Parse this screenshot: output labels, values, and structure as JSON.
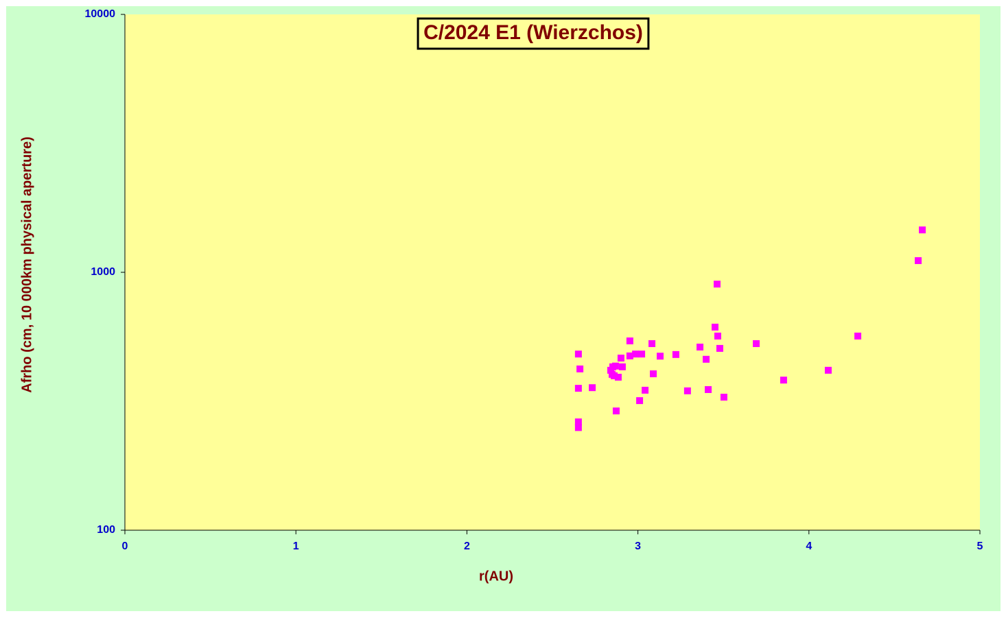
{
  "chart_data": {
    "type": "scatter",
    "title": "C/2024 E1 (Wierzchos)",
    "x_label": "r(AU)",
    "y_label": "Afrho  (cm, 10 000km physical  aperture)",
    "xlim": [
      0,
      5
    ],
    "xticks": [
      0,
      1,
      2,
      3,
      4,
      5
    ],
    "ylim": [
      100,
      10000
    ],
    "yticks": [
      100,
      1000,
      10000
    ],
    "y_log": true,
    "series": [
      {
        "color": "#ff00ff",
        "x": [
          4.663,
          4.639,
          3.463,
          3.451,
          3.467,
          4.286,
          2.953,
          3.082,
          3.692,
          3.363,
          3.479,
          2.652,
          3.222,
          2.986,
          3.022,
          2.953,
          3.13,
          2.901,
          3.399,
          2.661,
          2.909,
          2.869,
          2.853,
          2.841,
          2.849,
          2.885,
          2.861,
          3.09,
          4.113,
          3.852,
          2.652,
          2.733,
          3.042,
          3.29,
          3.411,
          3.503,
          3.01,
          2.873,
          2.652,
          2.652
        ],
        "values": [
          1460,
          1110,
          900,
          613,
          566,
          566,
          542,
          529,
          529,
          513,
          507,
          482,
          480,
          482,
          482,
          474,
          473,
          465,
          460,
          422,
          430,
          433,
          430,
          417,
          402,
          392,
          397,
          404,
          417,
          382,
          355,
          357,
          349,
          347,
          351,
          328,
          318,
          290,
          263,
          250
        ]
      }
    ]
  }
}
